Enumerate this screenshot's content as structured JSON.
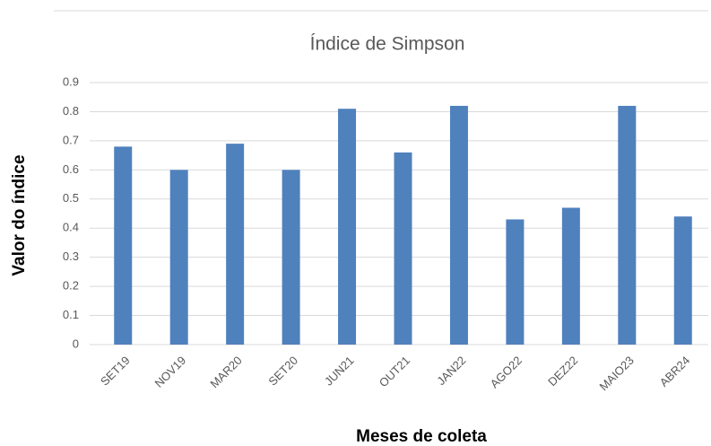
{
  "chart_data": {
    "type": "bar",
    "title": "Índice de Simpson",
    "y_label": "Valor do índice",
    "x_label": "Meses de coleta",
    "categories": [
      "SET19",
      "NOV19",
      "MAR20",
      "SET20",
      "JUN21",
      "OUT21",
      "JAN22",
      "AGO22",
      "DEZ22",
      "MAIO23",
      "ABR24"
    ],
    "values": [
      0.68,
      0.6,
      0.69,
      0.6,
      0.81,
      0.66,
      0.82,
      0.43,
      0.47,
      0.82,
      0.44
    ],
    "color": "#4f81bd",
    "ylim": [
      0,
      0.9
    ],
    "yticks": [
      0,
      0.1,
      0.2,
      0.3,
      0.4,
      0.5,
      0.6,
      0.7,
      0.8,
      0.9
    ],
    "grid": true
  }
}
